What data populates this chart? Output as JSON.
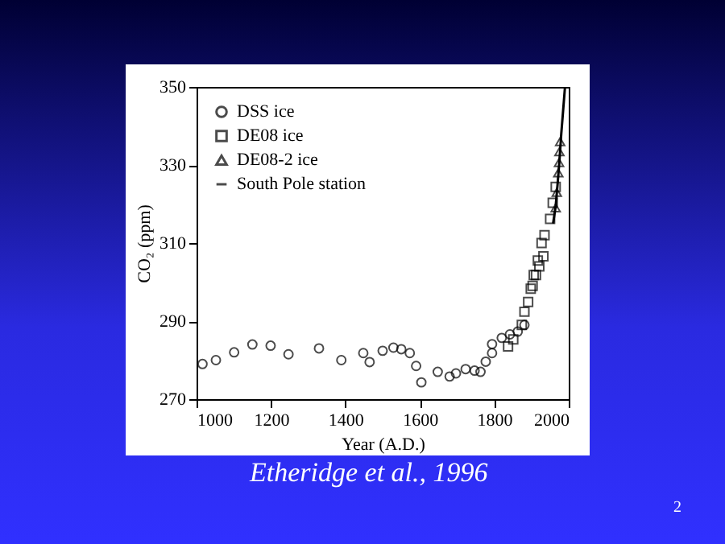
{
  "chart_data": {
    "type": "scatter",
    "xlabel": "Year (A.D.)",
    "ylabel": "CO₂ (ppm)",
    "xlim": [
      1000,
      2000
    ],
    "xticks": [
      1000,
      1200,
      1400,
      1600,
      1800,
      2000
    ],
    "ylim": [
      270,
      350
    ],
    "yticks": [
      270,
      290,
      310,
      330,
      350
    ],
    "grid": false,
    "legend": "top left",
    "annotations": [
      "Etheridge et al., 1996",
      "2"
    ],
    "series": [
      {
        "name": "DSS ice",
        "color": "#000000",
        "marker": "circle",
        "x": [
          1016,
          1052,
          1101,
          1150,
          1199,
          1247,
          1329,
          1389,
          1448,
          1465,
          1500,
          1529,
          1550,
          1573,
          1590,
          1604,
          1648,
          1680,
          1697,
          1723,
          1747,
          1763,
          1777,
          1794,
          1794,
          1820,
          1842,
          1863,
          1881
        ],
        "values": [
          279,
          280,
          282,
          284,
          283.7,
          281.5,
          283,
          280,
          281.8,
          279.5,
          282.4,
          283.2,
          282.8,
          281.8,
          278.5,
          274.3,
          277,
          275.8,
          276.6,
          277.7,
          277.3,
          277,
          279.6,
          281.8,
          284.1,
          285.7,
          286.6,
          287.3,
          289
        ]
      },
      {
        "name": "DE08 ice",
        "color": "#000000",
        "marker": "square",
        "x": [
          1837,
          1851,
          1874,
          1881,
          1891,
          1898,
          1903,
          1906,
          1912,
          1917,
          1921,
          1927,
          1932,
          1935,
          1950,
          1957,
          1965
        ],
        "values": [
          283.5,
          285.3,
          289,
          292.4,
          294.9,
          298.3,
          299,
          301.8,
          301.8,
          305.5,
          304,
          310,
          306.6,
          312,
          316.2,
          320.3,
          324.4
        ]
      },
      {
        "name": "DE08-2 ice",
        "color": "#000000",
        "marker": "triangle",
        "x": [
          1965,
          1968,
          1972,
          1974,
          1975,
          1977
        ],
        "values": [
          319,
          323,
          328,
          330.6,
          333.4,
          336
        ]
      },
      {
        "name": "South Pole station",
        "color": "#000000",
        "type": "line",
        "marker": "none",
        "x": [
          1958,
          1965,
          1970,
          1975,
          1980,
          1985,
          1990
        ],
        "values": [
          315,
          319.5,
          325,
          331,
          338,
          344,
          350
        ]
      }
    ]
  }
}
